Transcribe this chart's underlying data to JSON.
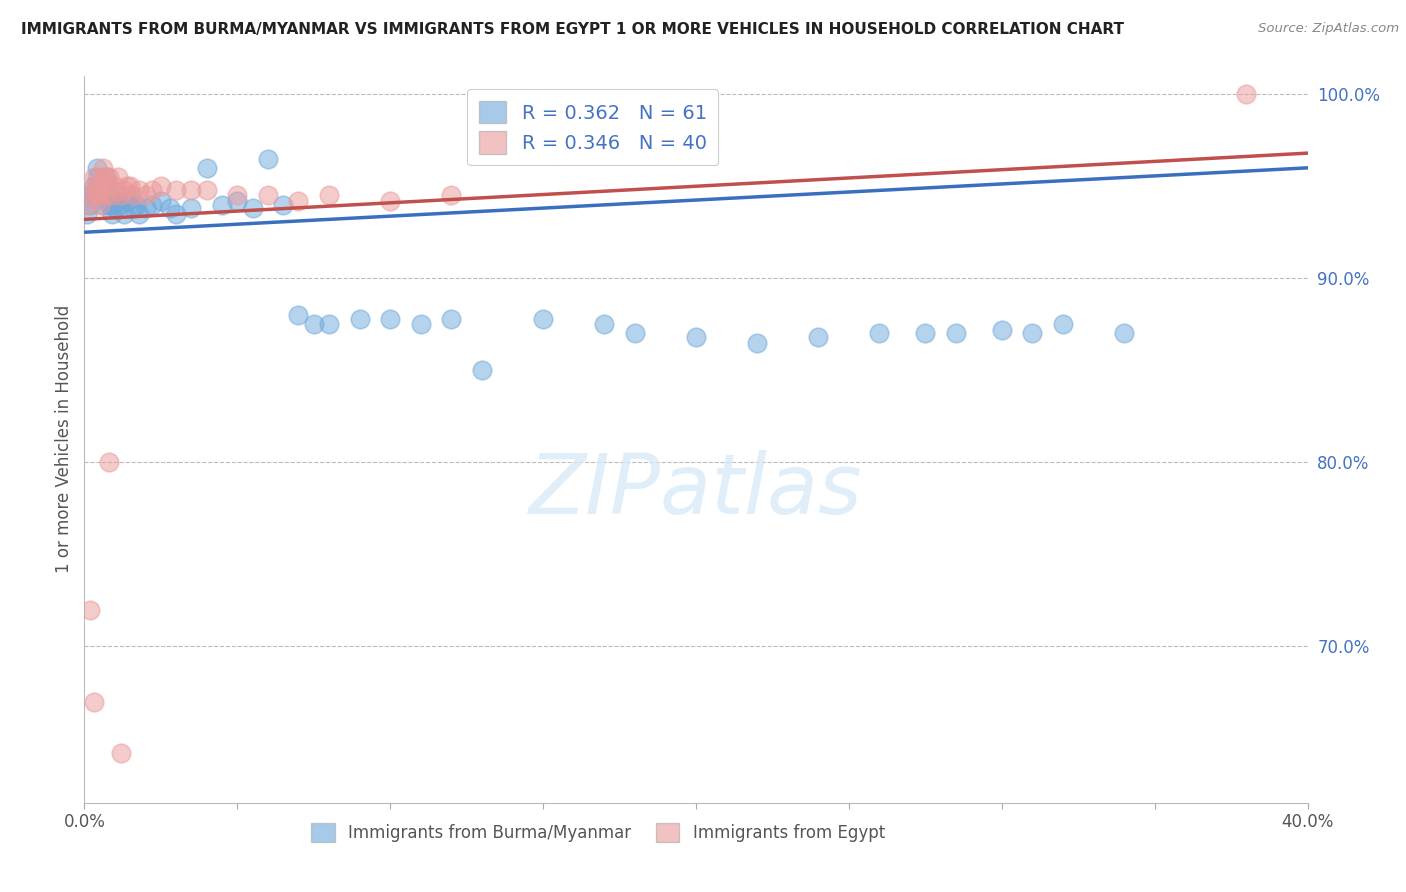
{
  "title": "IMMIGRANTS FROM BURMA/MYANMAR VS IMMIGRANTS FROM EGYPT 1 OR MORE VEHICLES IN HOUSEHOLD CORRELATION CHART",
  "source": "Source: ZipAtlas.com",
  "ylabel": "1 or more Vehicles in Household",
  "xlim": [
    0.0,
    0.4
  ],
  "ylim": [
    0.615,
    1.01
  ],
  "color_burma": "#6fa8dc",
  "color_egypt": "#ea9999",
  "R_burma": 0.362,
  "N_burma": 61,
  "R_egypt": 0.346,
  "N_egypt": 40,
  "line_color_burma": "#3a6fbe",
  "line_color_egypt": "#c0504d",
  "watermark_text": "ZIPatlas",
  "burma_x": [
    0.001,
    0.002,
    0.002,
    0.003,
    0.003,
    0.004,
    0.004,
    0.005,
    0.005,
    0.006,
    0.006,
    0.007,
    0.007,
    0.008,
    0.008,
    0.009,
    0.009,
    0.01,
    0.01,
    0.011,
    0.011,
    0.012,
    0.013,
    0.014,
    0.015,
    0.016,
    0.017,
    0.018,
    0.02,
    0.022,
    0.025,
    0.028,
    0.03,
    0.035,
    0.04,
    0.045,
    0.05,
    0.055,
    0.06,
    0.065,
    0.07,
    0.075,
    0.08,
    0.09,
    0.1,
    0.11,
    0.12,
    0.13,
    0.15,
    0.17,
    0.18,
    0.2,
    0.22,
    0.24,
    0.26,
    0.275,
    0.285,
    0.3,
    0.31,
    0.32,
    0.34
  ],
  "burma_y": [
    0.935,
    0.94,
    0.945,
    0.95,
    0.945,
    0.955,
    0.96,
    0.945,
    0.95,
    0.94,
    0.945,
    0.95,
    0.955,
    0.94,
    0.945,
    0.935,
    0.94,
    0.945,
    0.938,
    0.942,
    0.945,
    0.94,
    0.935,
    0.942,
    0.945,
    0.938,
    0.94,
    0.935,
    0.938,
    0.94,
    0.942,
    0.938,
    0.935,
    0.938,
    0.96,
    0.94,
    0.942,
    0.938,
    0.965,
    0.94,
    0.88,
    0.875,
    0.875,
    0.878,
    0.878,
    0.875,
    0.878,
    0.85,
    0.878,
    0.875,
    0.87,
    0.868,
    0.865,
    0.868,
    0.87,
    0.87,
    0.87,
    0.872,
    0.87,
    0.875,
    0.87
  ],
  "egypt_x": [
    0.001,
    0.002,
    0.003,
    0.003,
    0.004,
    0.004,
    0.005,
    0.005,
    0.006,
    0.006,
    0.007,
    0.007,
    0.008,
    0.008,
    0.009,
    0.01,
    0.011,
    0.012,
    0.013,
    0.014,
    0.015,
    0.016,
    0.018,
    0.02,
    0.022,
    0.025,
    0.03,
    0.035,
    0.04,
    0.05,
    0.06,
    0.07,
    0.08,
    0.1,
    0.12,
    0.38,
    0.002,
    0.003,
    0.008,
    0.012
  ],
  "egypt_y": [
    0.94,
    0.945,
    0.95,
    0.955,
    0.945,
    0.95,
    0.94,
    0.945,
    0.955,
    0.96,
    0.945,
    0.955,
    0.95,
    0.955,
    0.945,
    0.95,
    0.955,
    0.945,
    0.948,
    0.95,
    0.95,
    0.945,
    0.948,
    0.945,
    0.948,
    0.95,
    0.948,
    0.948,
    0.948,
    0.945,
    0.945,
    0.942,
    0.945,
    0.942,
    0.945,
    1.0,
    0.72,
    0.67,
    0.8,
    0.642
  ],
  "line_burma_x0": 0.0,
  "line_burma_x1": 0.4,
  "line_burma_y0": 0.925,
  "line_burma_y1": 0.96,
  "line_egypt_x0": 0.0,
  "line_egypt_x1": 0.4,
  "line_egypt_y0": 0.932,
  "line_egypt_y1": 0.968
}
